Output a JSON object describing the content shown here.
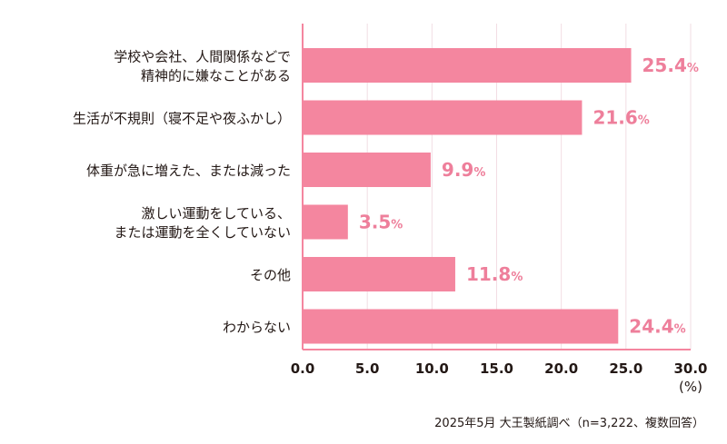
{
  "chart_data": {
    "type": "bar",
    "orientation": "horizontal",
    "categories": [
      [
        "学校や会社、人間関係などで",
        "精神的に嫌なことがある"
      ],
      [
        "生活が不規則（寝不足や夜ふかし）"
      ],
      [
        "体重が急に増えた、または減った"
      ],
      [
        "激しい運動をしている、",
        "または運動を全くしていない"
      ],
      [
        "その他"
      ],
      [
        "わからない"
      ]
    ],
    "values": [
      25.4,
      21.6,
      9.9,
      3.5,
      11.8,
      24.4
    ],
    "data_labels": [
      "25.4",
      "21.6",
      "9.9",
      "3.5",
      "11.8",
      "24.4"
    ],
    "label_unit": "%",
    "xlim": [
      0,
      30
    ],
    "xticks": [
      "0.0",
      "5.0",
      "10.0",
      "15.0",
      "20.0",
      "25.0",
      "30.0"
    ],
    "xunit": "(%)",
    "grid": true,
    "colors": {
      "bar": "#F4869F",
      "label": "#EE7F9B",
      "grid": "#F2DDE3",
      "axis": "#F4869F",
      "text": "#231815"
    }
  },
  "source": "2025年5月 大王製紙調べ（n=3,222、複数回答）"
}
